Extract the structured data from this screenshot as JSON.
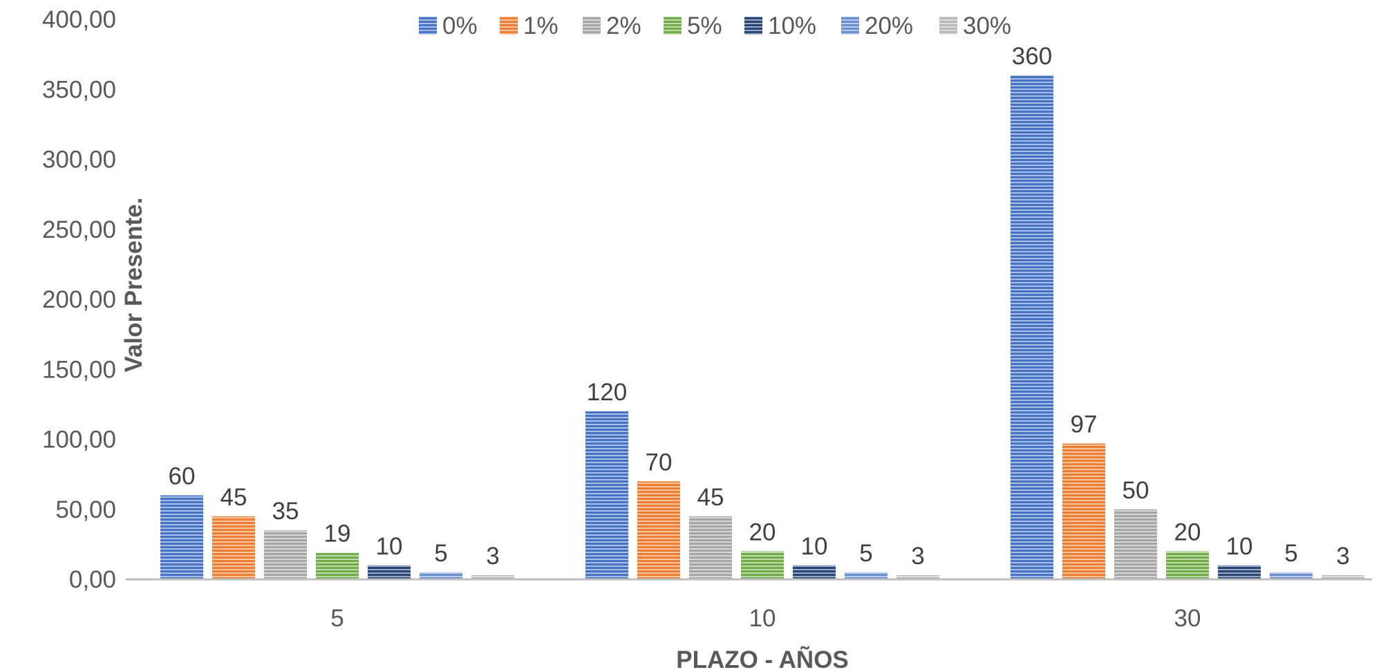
{
  "chart_data": {
    "type": "bar",
    "title": "",
    "xlabel": "PLAZO - AÑOS",
    "ylabel": "Valor Presente.",
    "categories": [
      "5",
      "10",
      "30"
    ],
    "ylim": [
      0,
      400
    ],
    "yticks": [
      "0,00",
      "50,00",
      "100,00",
      "150,00",
      "200,00",
      "250,00",
      "300,00",
      "350,00",
      "400,00"
    ],
    "ytick_values": [
      0,
      50,
      100,
      150,
      200,
      250,
      300,
      350,
      400
    ],
    "legend_position": "top",
    "grid": false,
    "series": [
      {
        "name": "0%",
        "color": "#4472C4",
        "values": [
          60,
          120,
          360
        ],
        "labels": [
          "60",
          "120",
          "360"
        ]
      },
      {
        "name": "1%",
        "color": "#ED7D31",
        "values": [
          45,
          70,
          97
        ],
        "labels": [
          "45",
          "70",
          "97"
        ]
      },
      {
        "name": "2%",
        "color": "#A5A5A5",
        "values": [
          35,
          45,
          50
        ],
        "labels": [
          "35",
          "45",
          "50"
        ]
      },
      {
        "name": "5%",
        "color": "#70AD47",
        "values": [
          19,
          20,
          20
        ],
        "labels": [
          "19",
          "20",
          "20"
        ]
      },
      {
        "name": "10%",
        "color": "#264478",
        "values": [
          10,
          10,
          10
        ],
        "labels": [
          "10",
          "10",
          "10"
        ]
      },
      {
        "name": "20%",
        "color": "#698ED0",
        "values": [
          5,
          5,
          5
        ],
        "labels": [
          "5",
          "5",
          "5"
        ]
      },
      {
        "name": "30%",
        "color": "#B7B7B7",
        "values": [
          3,
          3,
          3
        ],
        "labels": [
          "3",
          "3",
          "3"
        ]
      }
    ]
  }
}
